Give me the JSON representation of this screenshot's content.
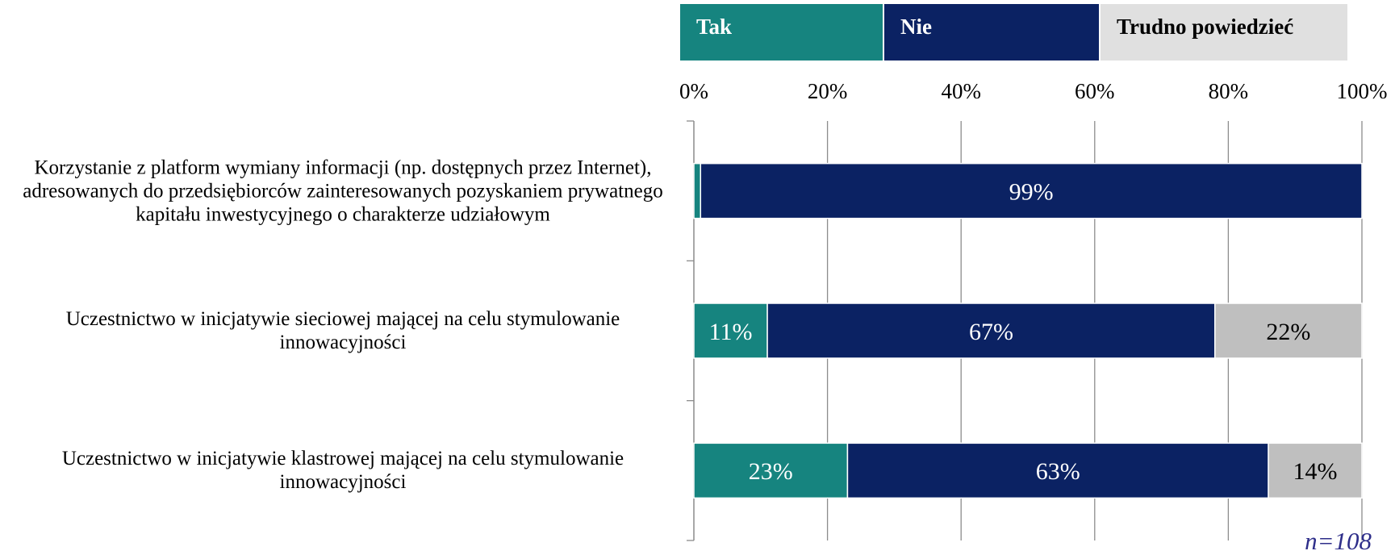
{
  "chart_data": {
    "type": "stacked-bar-horizontal",
    "categories": [
      "Korzystanie z platform wymiany informacji (np. dostępnych przez Internet), adresowanych do przedsiębiorców zainteresowanych pozyskaniem prywatnego kapitału inwestycyjnego o charakterze udziałowym",
      "Uczestnictwo w inicjatywie sieciowej mającej na celu stymulowanie innowacyjności",
      "Uczestnictwo w inicjatywie klastrowej mającej na celu stymulowanie innowacyjności"
    ],
    "series": [
      {
        "name": "Tak",
        "color": "#16847f",
        "values": [
          1,
          11,
          23
        ],
        "value_labels": [
          "1%",
          "11%",
          "23%"
        ]
      },
      {
        "name": "Nie",
        "color": "#0b2263",
        "values": [
          99,
          67,
          63
        ],
        "value_labels": [
          "99%",
          "67%",
          "63%"
        ]
      },
      {
        "name": "Trudno powiedzieć",
        "color": "#bfbfbf",
        "values": [
          null,
          22,
          14
        ],
        "value_labels": [
          null,
          "22%",
          "14%"
        ]
      }
    ],
    "xlim": [
      0,
      100
    ],
    "xticks": [
      {
        "value": 0,
        "label": "0%"
      },
      {
        "value": 20,
        "label": "20%"
      },
      {
        "value": 40,
        "label": "40%"
      },
      {
        "value": 60,
        "label": "60%"
      },
      {
        "value": 80,
        "label": "80%"
      },
      {
        "value": 100,
        "label": "100%"
      }
    ],
    "grid": true,
    "legend": "top",
    "annotations": [
      "n=108"
    ]
  }
}
